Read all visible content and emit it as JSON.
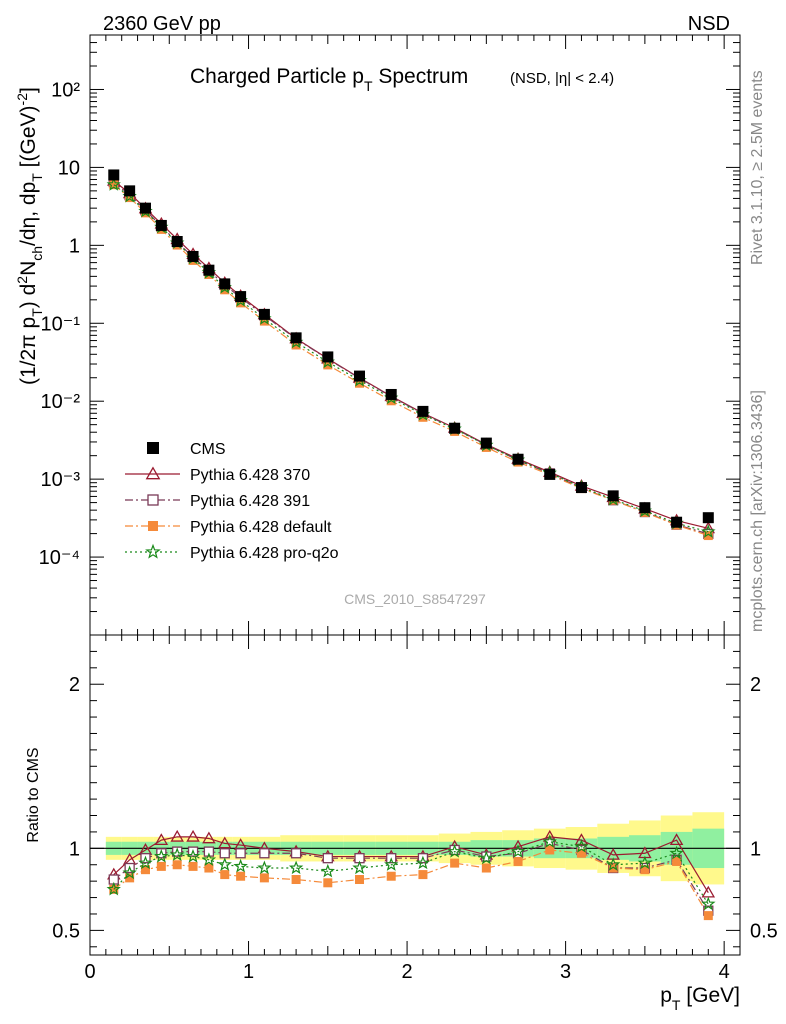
{
  "header": {
    "left": "2360 GeV pp",
    "right": "NSD"
  },
  "side_text": {
    "top": "Rivet 3.1.10, ≥ 2.5M events",
    "bottom": "mcplots.cern.ch [arXiv:1306.3436]"
  },
  "watermark": "CMS_2010_S8547297",
  "legend": [
    {
      "label": "CMS",
      "color": "#000000",
      "marker": "filled-square",
      "line": "none"
    },
    {
      "label": "Pythia 6.428 370",
      "color": "#9b1b30",
      "marker": "open-triangle",
      "line": "solid"
    },
    {
      "label": "Pythia 6.428 391",
      "color": "#7a3a58",
      "marker": "open-square",
      "line": "dashdot"
    },
    {
      "label": "Pythia 6.428 default",
      "color": "#f58a3a",
      "marker": "filled-square",
      "line": "dashdot"
    },
    {
      "label": "Pythia 6.428 pro-q2o",
      "color": "#1a8a1a",
      "marker": "star",
      "line": "dotted"
    }
  ],
  "chart_data": {
    "type": "scatter",
    "title": "Charged Particle p_T Spectrum",
    "title_suffix": "(NSD, |η| < 2.4)",
    "xlabel": "p_T [GeV]",
    "ylabel": "(1/2π p_T) d²N_ch/dη, dp_T [(GeV)⁻²]",
    "ratio_ylabel": "Ratio to CMS",
    "xlim": [
      0,
      4.1
    ],
    "ylim_main": [
      1e-05,
      500
    ],
    "ylim_ratio": [
      0.35,
      2.3
    ],
    "yscale_main": "log",
    "x_ticks": [
      "0",
      "1",
      "2",
      "3",
      "4"
    ],
    "main_y_ticks": [
      "10⁻⁴",
      "10⁻³",
      "10⁻²",
      "10⁻¹",
      "1",
      "10",
      "10²"
    ],
    "ratio_y_ticks": [
      "0.5",
      "1",
      "2"
    ],
    "legend_position": "lower-left",
    "x": [
      0.15,
      0.25,
      0.35,
      0.45,
      0.55,
      0.65,
      0.75,
      0.85,
      0.95,
      1.1,
      1.3,
      1.5,
      1.7,
      1.9,
      2.1,
      2.3,
      2.5,
      2.7,
      2.9,
      3.1,
      3.3,
      3.5,
      3.7,
      3.9
    ],
    "x_edges": [
      0.1,
      0.2,
      0.3,
      0.4,
      0.5,
      0.6,
      0.7,
      0.8,
      0.9,
      1.0,
      1.2,
      1.4,
      1.6,
      1.8,
      2.0,
      2.2,
      2.4,
      2.6,
      2.8,
      3.0,
      3.2,
      3.4,
      3.6,
      3.8,
      4.0
    ],
    "cms_values": [
      8.0,
      5.0,
      3.0,
      1.8,
      1.12,
      0.72,
      0.48,
      0.32,
      0.22,
      0.13,
      0.065,
      0.037,
      0.021,
      0.0122,
      0.0074,
      0.0045,
      0.0029,
      0.0018,
      0.00115,
      0.00078,
      0.00061,
      0.00043,
      0.00028,
      0.00032
    ],
    "band_inner": [
      0.04,
      0.04,
      0.04,
      0.04,
      0.04,
      0.04,
      0.04,
      0.04,
      0.04,
      0.04,
      0.04,
      0.04,
      0.04,
      0.04,
      0.04,
      0.04,
      0.05,
      0.05,
      0.06,
      0.06,
      0.07,
      0.08,
      0.1,
      0.12
    ],
    "band_outer": [
      0.07,
      0.07,
      0.07,
      0.07,
      0.07,
      0.07,
      0.07,
      0.07,
      0.07,
      0.07,
      0.08,
      0.08,
      0.08,
      0.08,
      0.08,
      0.09,
      0.1,
      0.11,
      0.12,
      0.13,
      0.15,
      0.17,
      0.2,
      0.22
    ],
    "series": [
      {
        "name": "Pythia 6.428 370",
        "color": "#9b1b30",
        "marker": "open-triangle",
        "dash": "",
        "ratio": [
          0.84,
          0.93,
          0.99,
          1.05,
          1.07,
          1.07,
          1.06,
          1.03,
          1.02,
          1.0,
          0.98,
          0.95,
          0.95,
          0.95,
          0.95,
          1.01,
          0.96,
          1.01,
          1.07,
          1.05,
          0.96,
          0.97,
          1.05,
          0.73
        ]
      },
      {
        "name": "Pythia 6.428 391",
        "color": "#7a3a58",
        "marker": "open-square",
        "dash": "8,3,2,3",
        "ratio": [
          0.81,
          0.88,
          0.94,
          0.97,
          0.98,
          0.98,
          0.98,
          0.97,
          0.97,
          0.97,
          0.97,
          0.94,
          0.94,
          0.94,
          0.94,
          0.99,
          0.95,
          0.97,
          1.03,
          0.99,
          0.88,
          0.88,
          0.93,
          0.62
        ]
      },
      {
        "name": "Pythia 6.428 default",
        "color": "#f58a3a",
        "marker": "filled-square",
        "dash": "8,3,2,3",
        "ratio": [
          0.75,
          0.82,
          0.87,
          0.89,
          0.9,
          0.89,
          0.88,
          0.84,
          0.83,
          0.82,
          0.81,
          0.79,
          0.81,
          0.83,
          0.84,
          0.91,
          0.88,
          0.92,
          0.99,
          0.97,
          0.88,
          0.87,
          0.92,
          0.59
        ]
      },
      {
        "name": "Pythia 6.428 pro-q2o",
        "color": "#1a8a1a",
        "marker": "star",
        "dash": "2,3",
        "ratio": [
          0.75,
          0.85,
          0.91,
          0.95,
          0.96,
          0.95,
          0.93,
          0.9,
          0.89,
          0.88,
          0.88,
          0.86,
          0.88,
          0.9,
          0.91,
          0.98,
          0.94,
          0.98,
          1.04,
          1.01,
          0.9,
          0.91,
          0.97,
          0.66
        ]
      }
    ]
  }
}
